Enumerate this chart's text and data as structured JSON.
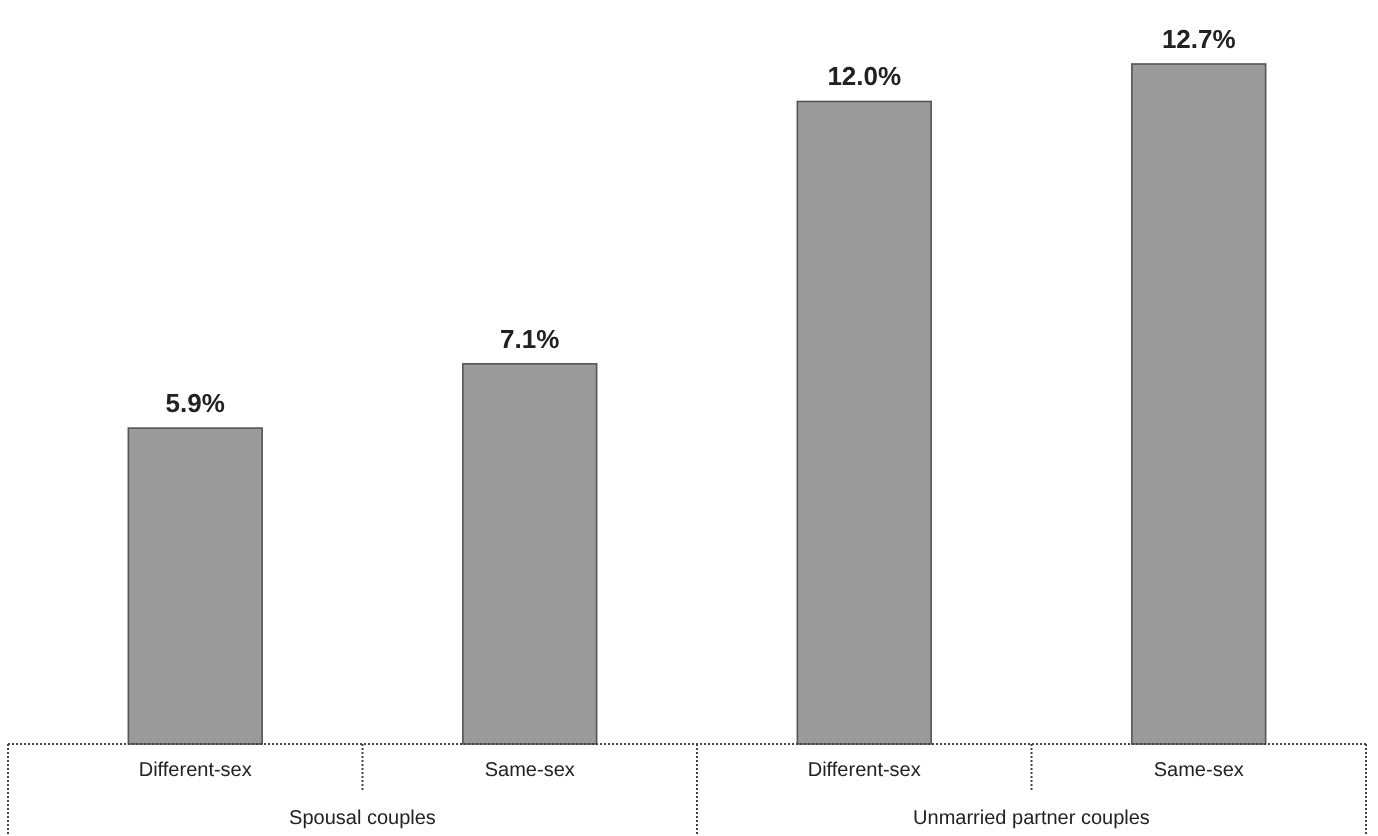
{
  "chart_data": {
    "type": "bar",
    "categories": [
      "Different-sex",
      "Same-sex",
      "Different-sex",
      "Same-sex"
    ],
    "values": [
      5.9,
      7.1,
      12.0,
      12.7
    ],
    "value_labels": [
      "5.9%",
      "7.1%",
      "12.0%",
      "12.7%"
    ],
    "color": "#9a9a9a",
    "annotations": [
      "Spousal couples",
      "Unmarried partner couples"
    ]
  }
}
